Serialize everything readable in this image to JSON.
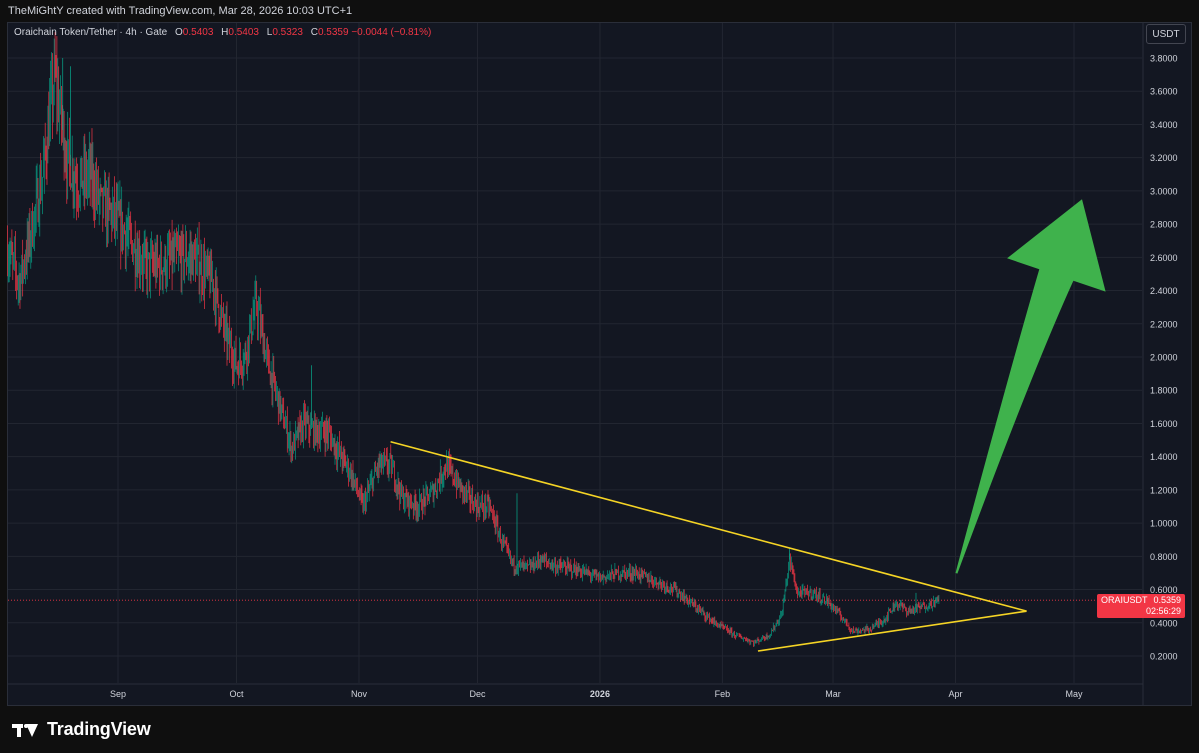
{
  "header": {
    "attribution": "TheMiGhtY created with TradingView.com, Mar 28, 2026 10:03 UTC+1"
  },
  "legend": {
    "symbol": "Oraichain Token/Tether · 4h · Gate",
    "o_label": "O",
    "o_value": "0.5403",
    "h_label": "H",
    "h_value": "0.5403",
    "l_label": "L",
    "l_value": "0.5323",
    "c_label": "C",
    "c_value": "0.5359",
    "change": "−0.0044 (−0.81%)"
  },
  "currency_button": "USDT",
  "price_tag": {
    "symbol": "ORAIUSDT",
    "price": "0.5359",
    "countdown": "02:56:29"
  },
  "footer": {
    "brand": "TradingView"
  },
  "colors": {
    "background": "#131722",
    "grid": "#222631",
    "up": "#089981",
    "down": "#f23645",
    "trendline": "#f5d425",
    "arrow": "#3fb24c"
  },
  "chart_data": {
    "type": "candlestick",
    "timeframe": "4h",
    "y_axis": {
      "min": 0.2,
      "max": 3.8,
      "step": 0.2,
      "tick_labels": [
        "0.2000",
        "0.4000",
        "0.6000",
        "0.8000",
        "1.0000",
        "1.2000",
        "1.4000",
        "1.6000",
        "1.8000",
        "2.0000",
        "2.2000",
        "2.4000",
        "2.6000",
        "2.8000",
        "3.0000",
        "3.2000",
        "3.4000",
        "3.6000",
        "3.8000"
      ]
    },
    "x_axis": {
      "tick_labels": [
        "Sep",
        "Oct",
        "Nov",
        "Dec",
        "2026",
        "Feb",
        "Mar",
        "Apr",
        "May"
      ],
      "tick_dates": [
        "2025-09-01",
        "2025-10-01",
        "2025-11-01",
        "2025-12-01",
        "2026-01-01",
        "2026-02-01",
        "2026-03-01",
        "2026-04-01",
        "2026-05-01"
      ],
      "range": [
        "2025-08-04",
        "2026-05-18"
      ]
    },
    "last_price": 0.5359,
    "price_path": [
      [
        "2025-08-04",
        2.65
      ],
      [
        "2025-08-07",
        2.45
      ],
      [
        "2025-08-10",
        2.75
      ],
      [
        "2025-08-13",
        3.1
      ],
      [
        "2025-08-16",
        3.7
      ],
      [
        "2025-08-19",
        3.2
      ],
      [
        "2025-08-22",
        3.05
      ],
      [
        "2025-08-25",
        3.1
      ],
      [
        "2025-08-28",
        2.9
      ],
      [
        "2025-08-31",
        2.85
      ],
      [
        "2025-09-04",
        2.7
      ],
      [
        "2025-09-08",
        2.55
      ],
      [
        "2025-09-12",
        2.55
      ],
      [
        "2025-09-16",
        2.6
      ],
      [
        "2025-09-20",
        2.6
      ],
      [
        "2025-09-25",
        2.45
      ],
      [
        "2025-09-28",
        2.15
      ],
      [
        "2025-10-01",
        1.95
      ],
      [
        "2025-10-03",
        2.0
      ],
      [
        "2025-10-06",
        2.32
      ],
      [
        "2025-10-09",
        1.95
      ],
      [
        "2025-10-12",
        1.7
      ],
      [
        "2025-10-15",
        1.45
      ],
      [
        "2025-10-18",
        1.6
      ],
      [
        "2025-10-21",
        1.55
      ],
      [
        "2025-10-24",
        1.55
      ],
      [
        "2025-10-27",
        1.42
      ],
      [
        "2025-10-30",
        1.3
      ],
      [
        "2025-11-02",
        1.1
      ],
      [
        "2025-11-06",
        1.35
      ],
      [
        "2025-11-09",
        1.35
      ],
      [
        "2025-11-12",
        1.15
      ],
      [
        "2025-11-16",
        1.1
      ],
      [
        "2025-11-20",
        1.2
      ],
      [
        "2025-11-23",
        1.35
      ],
      [
        "2025-11-27",
        1.2
      ],
      [
        "2025-12-01",
        1.1
      ],
      [
        "2025-12-04",
        1.1
      ],
      [
        "2025-12-07",
        0.9
      ],
      [
        "2025-12-10",
        0.75
      ],
      [
        "2025-12-14",
        0.73
      ],
      [
        "2025-12-17",
        0.78
      ],
      [
        "2025-12-21",
        0.74
      ],
      [
        "2025-12-26",
        0.72
      ],
      [
        "2026-01-01",
        0.67
      ],
      [
        "2026-01-06",
        0.7
      ],
      [
        "2026-01-10",
        0.7
      ],
      [
        "2026-01-15",
        0.65
      ],
      [
        "2026-01-20",
        0.6
      ],
      [
        "2026-01-25",
        0.5
      ],
      [
        "2026-01-30",
        0.4
      ],
      [
        "2026-02-04",
        0.33
      ],
      [
        "2026-02-09",
        0.28
      ],
      [
        "2026-02-13",
        0.33
      ],
      [
        "2026-02-16",
        0.45
      ],
      [
        "2026-02-18",
        0.78
      ],
      [
        "2026-02-20",
        0.58
      ],
      [
        "2026-02-24",
        0.58
      ],
      [
        "2026-02-28",
        0.52
      ],
      [
        "2026-03-03",
        0.44
      ],
      [
        "2026-03-06",
        0.35
      ],
      [
        "2026-03-10",
        0.36
      ],
      [
        "2026-03-14",
        0.42
      ],
      [
        "2026-03-17",
        0.52
      ],
      [
        "2026-03-20",
        0.47
      ],
      [
        "2026-03-24",
        0.5
      ],
      [
        "2026-03-28",
        0.5359
      ]
    ],
    "spikes": [
      [
        "2025-08-18",
        3.8
      ],
      [
        "2025-08-20",
        3.75
      ],
      [
        "2025-10-20",
        1.95
      ],
      [
        "2025-12-11",
        1.18
      ],
      [
        "2026-02-18",
        0.85
      ],
      [
        "2026-03-22",
        0.58
      ]
    ],
    "trendlines": [
      {
        "from": [
          "2025-11-09",
          1.49
        ],
        "to": [
          "2026-04-19",
          0.47
        ]
      },
      {
        "from": [
          "2026-02-10",
          0.23
        ],
        "to": [
          "2026-04-19",
          0.47
        ]
      }
    ],
    "annotation_arrow": {
      "from": [
        "2026-04-01",
        0.7
      ],
      "to": [
        "2026-05-01",
        2.95
      ],
      "direction": "up"
    }
  }
}
